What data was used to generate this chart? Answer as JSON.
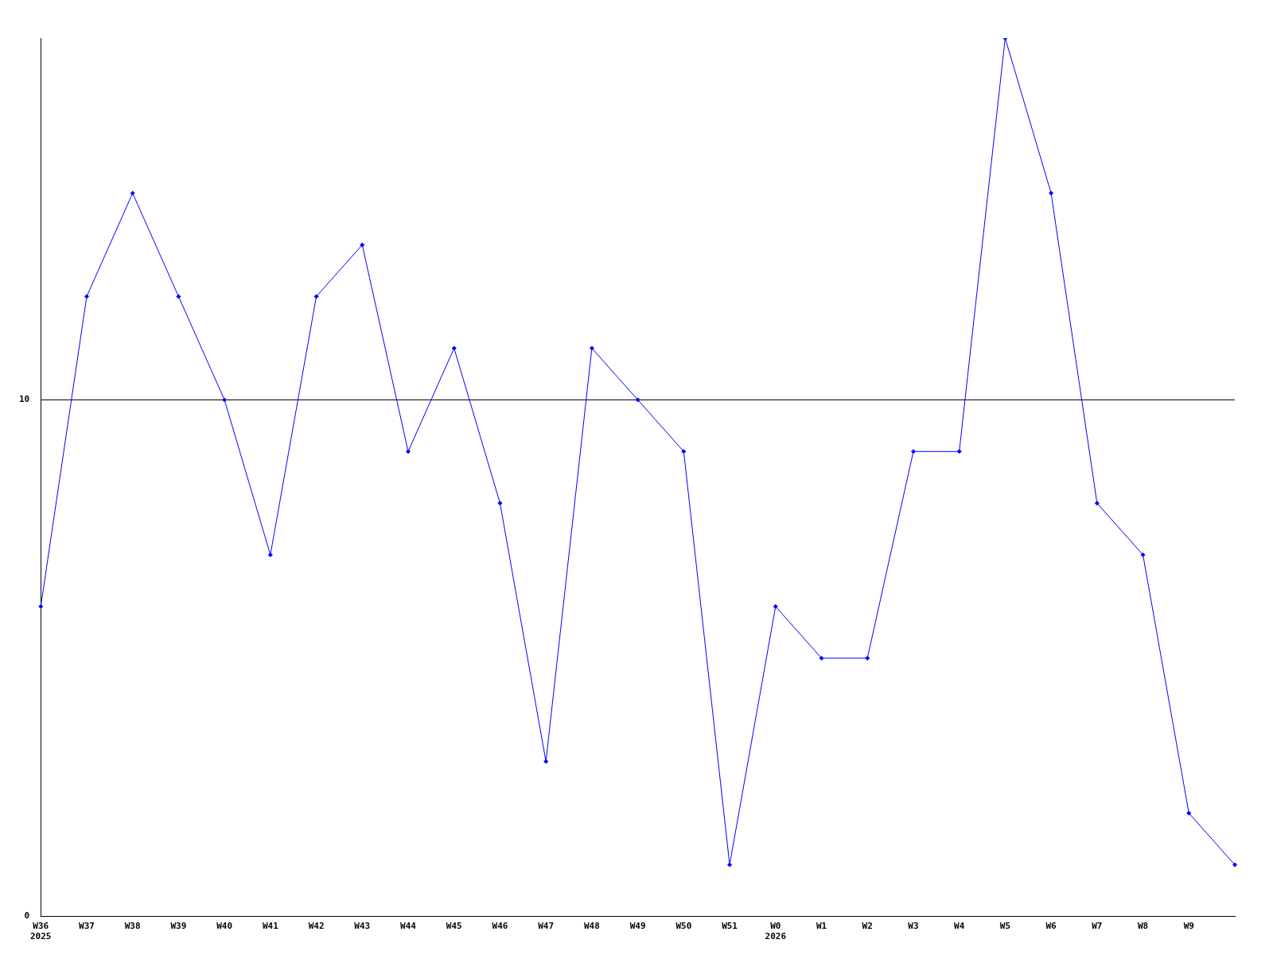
{
  "chart_data": {
    "type": "line",
    "categories": [
      "W36\n2025",
      "W37",
      "W38",
      "W39",
      "W40",
      "W41",
      "W42",
      "W43",
      "W44",
      "W45",
      "W46",
      "W47",
      "W48",
      "W49",
      "W50",
      "W51",
      "W0\n2026",
      "W1",
      "W2",
      "W3",
      "W4",
      "W5",
      "W6",
      "W7",
      "W8",
      "W9",
      null
    ],
    "series": [
      {
        "color": "#0000ff",
        "values": [
          6,
          12,
          14,
          12,
          10,
          7,
          12,
          13,
          9,
          11,
          8,
          3,
          11,
          10,
          9,
          1,
          6,
          5,
          5,
          9,
          9,
          17,
          14,
          8,
          7,
          2,
          1
        ]
      }
    ],
    "ylim": [
      0,
      17
    ],
    "yticks": [
      0,
      10
    ],
    "grid": "y",
    "legend": false,
    "marker": "diamond",
    "line_style": "solid"
  }
}
